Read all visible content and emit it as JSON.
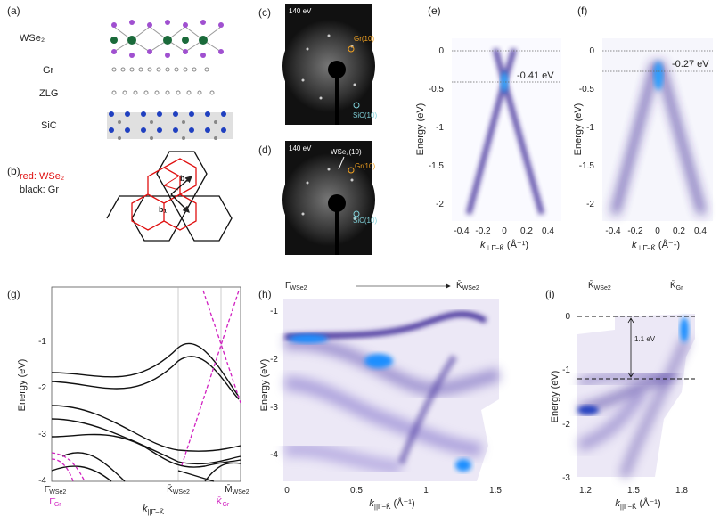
{
  "panels": {
    "a": {
      "label": "(a)",
      "layers": [
        "WSe₂",
        "Gr",
        "ZLG",
        "SiC"
      ]
    },
    "b": {
      "label": "(b)",
      "legend_red": "red: WSe₂",
      "legend_black": "black: Gr",
      "vectors": [
        "b₂",
        "b₁"
      ]
    },
    "c": {
      "label": "(c)",
      "energy": "140 eV",
      "spots": [
        "Gr(10)",
        "SiC(10)"
      ]
    },
    "d": {
      "label": "(d)",
      "energy": "140 eV",
      "spots": [
        "WSe₂(10)",
        "Gr(10)",
        "SiC(10)"
      ]
    },
    "e": {
      "label": "(e)",
      "ylabel": "Energy (eV)",
      "xlabel": {
        "main": "k",
        "sub": "⊥Γ̄−K̄",
        "unit": " (Å⁻¹)"
      },
      "yticks": [
        "0",
        "-0.5",
        "-1",
        "-1.5",
        "-2"
      ],
      "xticks": [
        "-0.4",
        "-0.2",
        "0",
        "0.2",
        "0.4"
      ],
      "annotation": "-0.41 eV"
    },
    "f": {
      "label": "(f)",
      "ylabel": "Energy (eV)",
      "xlabel": {
        "main": "k",
        "sub": "⊥Γ̄−K̄",
        "unit": " (Å⁻¹)"
      },
      "yticks": [
        "0",
        "-0.5",
        "-1",
        "-1.5",
        "-2"
      ],
      "xticks": [
        "-0.4",
        "-0.2",
        "0",
        "0.2",
        "0.4"
      ],
      "annotation": "-0.27 eV"
    },
    "g": {
      "label": "(g)",
      "ylabel": "Energy (eV)",
      "xlabel": {
        "main": "k",
        "sub": "||Γ̄−K̄"
      },
      "yticks": [
        "-1",
        "-2",
        "-3",
        "-4"
      ],
      "xticks": [
        {
          "main": "Γ̄",
          "sub": "WSe2"
        },
        {
          "main": "K̄",
          "sub": "WSe2"
        },
        {
          "main": "M̄",
          "sub": "WSe2"
        }
      ],
      "gr_ticks": [
        {
          "main": "Γ̄",
          "sub": "Gr"
        },
        {
          "main": "K̄",
          "sub": "Gr"
        }
      ]
    },
    "h": {
      "label": "(h)",
      "ylabel": "Energy (eV)",
      "xlabel": {
        "main": "k",
        "sub": "||Γ̄−K̄",
        "unit": " (Å⁻¹)"
      },
      "yticks": [
        "-1",
        "-2",
        "-3",
        "-4"
      ],
      "xticks": [
        "0",
        "0.5",
        "1",
        "1.5"
      ],
      "top": [
        {
          "main": "Γ̄",
          "sub": "WSe2"
        },
        {
          "main": "K̄",
          "sub": "WSe2"
        }
      ]
    },
    "i": {
      "label": "(i)",
      "ylabel": "Energy (eV)",
      "xlabel": {
        "main": "k",
        "sub": "||Γ̄−K̄",
        "unit": " (Å⁻¹)"
      },
      "yticks": [
        "0",
        "-1",
        "-2",
        "-3"
      ],
      "xticks": [
        "1.2",
        "1.5",
        "1.8"
      ],
      "top": [
        {
          "main": "K̄",
          "sub": "WSe2"
        },
        {
          "main": "K̄",
          "sub": "Gr"
        }
      ],
      "annotation": "1.1 eV"
    }
  }
}
